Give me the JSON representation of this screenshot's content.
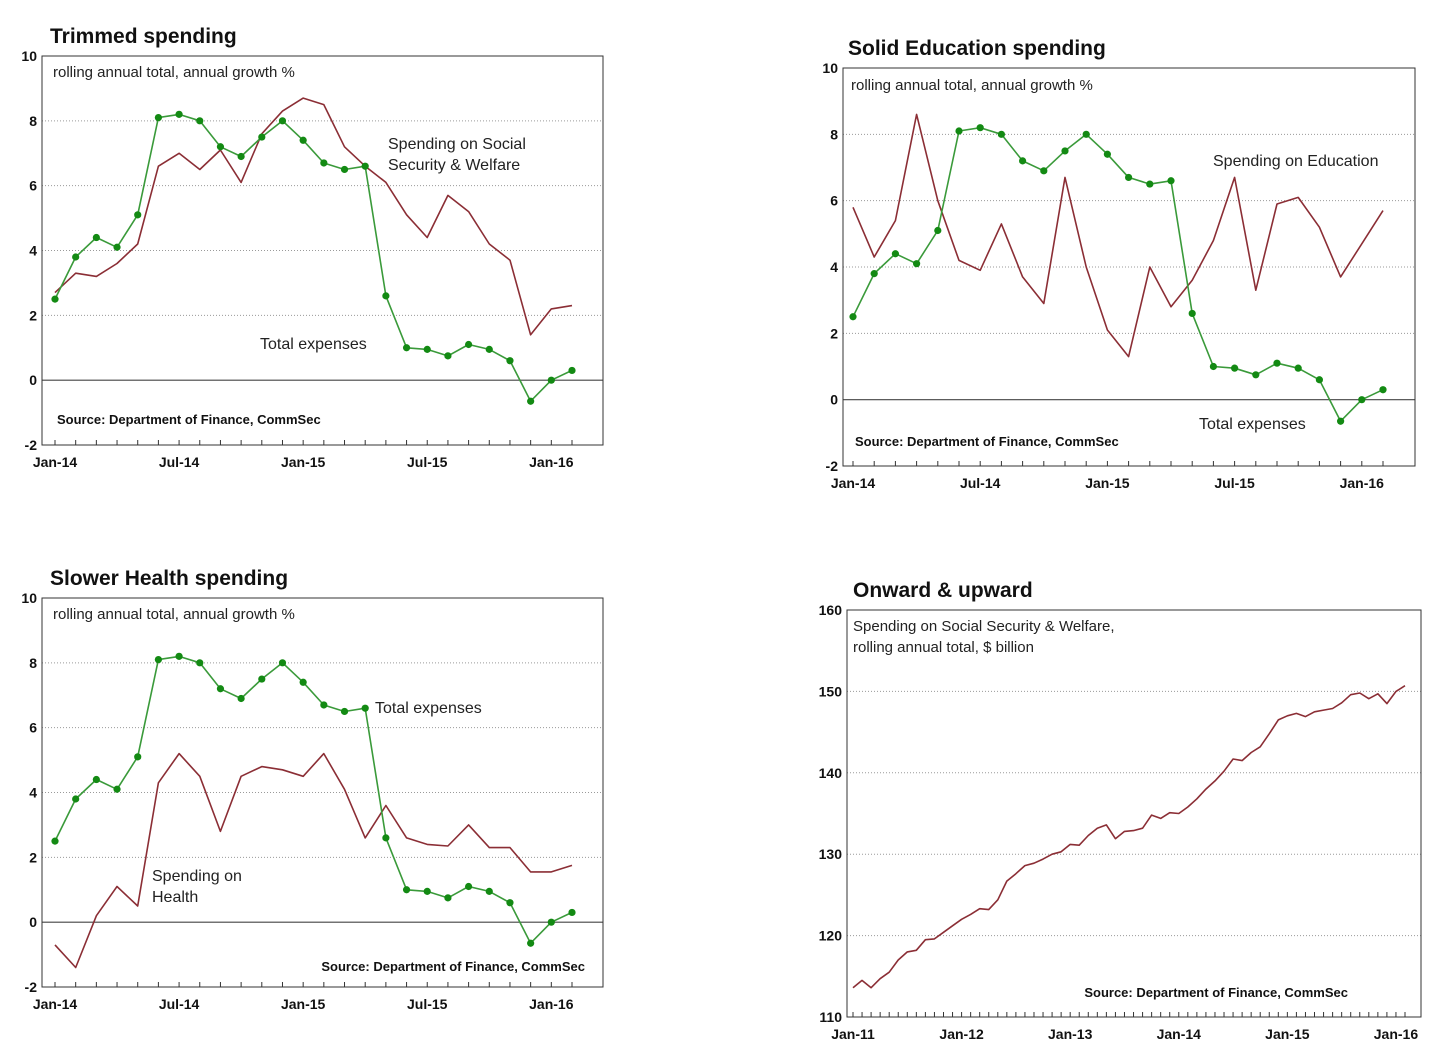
{
  "chart_data": [
    {
      "type": "line",
      "title": "Trimmed spending",
      "subtitle": "rolling annual total, annual growth %",
      "source": "Source: Department of Finance, CommSec",
      "ylim": [
        -2,
        10
      ],
      "yticks": [
        "10",
        "8",
        "6",
        "4",
        "2",
        "0",
        "-2"
      ],
      "xticks": [
        "Jan-14",
        "Jul-14",
        "Jan-15",
        "Jul-15",
        "Jan-16"
      ],
      "grid": true,
      "x": [
        "Jan-14",
        "Feb-14",
        "Mar-14",
        "Apr-14",
        "May-14",
        "Jun-14",
        "Jul-14",
        "Aug-14",
        "Sep-14",
        "Oct-14",
        "Nov-14",
        "Dec-14",
        "Jan-15",
        "Feb-15",
        "Mar-15",
        "Apr-15",
        "May-15",
        "Jun-15",
        "Jul-15",
        "Aug-15",
        "Sep-15",
        "Oct-15",
        "Nov-15",
        "Dec-15",
        "Jan-16",
        "Feb-16"
      ],
      "series": [
        {
          "name": "Spending on Social Security & Welfare",
          "label_lines": [
            "Spending on Social",
            "Security & Welfare"
          ],
          "color": "#8b2e35",
          "markers": false,
          "values": [
            2.7,
            3.3,
            3.2,
            3.6,
            4.2,
            6.6,
            7.0,
            6.5,
            7.1,
            6.1,
            7.6,
            8.3,
            8.7,
            8.5,
            7.2,
            6.6,
            6.1,
            5.1,
            4.4,
            5.7,
            5.2,
            4.2,
            3.7,
            1.4,
            2.2,
            2.3
          ]
        },
        {
          "name": "Total expenses",
          "label_lines": [
            "Total expenses"
          ],
          "color": "#3a9a3a",
          "markers": true,
          "values": [
            2.5,
            3.8,
            4.4,
            4.1,
            5.1,
            8.1,
            8.2,
            8.0,
            7.2,
            6.9,
            7.5,
            8.0,
            7.4,
            6.7,
            6.5,
            6.6,
            2.6,
            1.0,
            0.95,
            0.75,
            1.1,
            0.95,
            0.6,
            -0.65,
            0.0,
            0.3
          ]
        }
      ]
    },
    {
      "type": "line",
      "title": "Solid Education spending",
      "subtitle": "rolling annual total, annual growth %",
      "source": "Source: Department of Finance, CommSec",
      "ylim": [
        -2,
        10
      ],
      "yticks": [
        "10",
        "8",
        "6",
        "4",
        "2",
        "0",
        "-2"
      ],
      "xticks": [
        "Jan-14",
        "Jul-14",
        "Jan-15",
        "Jul-15",
        "Jan-16"
      ],
      "grid": true,
      "x": [
        "Jan-14",
        "Feb-14",
        "Mar-14",
        "Apr-14",
        "May-14",
        "Jun-14",
        "Jul-14",
        "Aug-14",
        "Sep-14",
        "Oct-14",
        "Nov-14",
        "Dec-14",
        "Jan-15",
        "Feb-15",
        "Mar-15",
        "Apr-15",
        "May-15",
        "Jun-15",
        "Jul-15",
        "Aug-15",
        "Sep-15",
        "Oct-15",
        "Nov-15",
        "Dec-15",
        "Jan-16",
        "Feb-16"
      ],
      "series": [
        {
          "name": "Spending on Education",
          "label_lines": [
            "Spending on Education"
          ],
          "color": "#8b2e35",
          "markers": false,
          "values": [
            5.8,
            4.3,
            5.4,
            8.6,
            6.0,
            4.2,
            3.9,
            5.3,
            3.7,
            2.9,
            6.7,
            4.0,
            2.1,
            1.3,
            4.0,
            2.8,
            3.6,
            4.8,
            6.7,
            3.3,
            5.9,
            6.1,
            5.2,
            3.7,
            4.7,
            5.7
          ]
        },
        {
          "name": "Total expenses",
          "label_lines": [
            "Total expenses"
          ],
          "color": "#3a9a3a",
          "markers": true,
          "values": [
            2.5,
            3.8,
            4.4,
            4.1,
            5.1,
            8.1,
            8.2,
            8.0,
            7.2,
            6.9,
            7.5,
            8.0,
            7.4,
            6.7,
            6.5,
            6.6,
            2.6,
            1.0,
            0.95,
            0.75,
            1.1,
            0.95,
            0.6,
            -0.65,
            0.0,
            0.3
          ]
        }
      ]
    },
    {
      "type": "line",
      "title": "Slower Health spending",
      "subtitle": "rolling annual total, annual growth %",
      "source": "Source: Department of Finance, CommSec",
      "ylim": [
        -2,
        10
      ],
      "yticks": [
        "10",
        "8",
        "6",
        "4",
        "2",
        "0",
        "-2"
      ],
      "xticks": [
        "Jan-14",
        "Jul-14",
        "Jan-15",
        "Jul-15",
        "Jan-16"
      ],
      "grid": true,
      "x": [
        "Jan-14",
        "Feb-14",
        "Mar-14",
        "Apr-14",
        "May-14",
        "Jun-14",
        "Jul-14",
        "Aug-14",
        "Sep-14",
        "Oct-14",
        "Nov-14",
        "Dec-14",
        "Jan-15",
        "Feb-15",
        "Mar-15",
        "Apr-15",
        "May-15",
        "Jun-15",
        "Jul-15",
        "Aug-15",
        "Sep-15",
        "Oct-15",
        "Nov-15",
        "Dec-15",
        "Jan-16",
        "Feb-16"
      ],
      "series": [
        {
          "name": "Spending on Health",
          "label_lines": [
            "Spending on",
            "Health"
          ],
          "color": "#8b2e35",
          "markers": false,
          "values": [
            -0.7,
            -1.4,
            0.2,
            1.1,
            0.5,
            4.3,
            5.2,
            4.5,
            2.8,
            4.5,
            4.8,
            4.7,
            4.5,
            5.2,
            4.1,
            2.6,
            3.6,
            2.6,
            2.4,
            2.35,
            3.0,
            2.3,
            2.3,
            1.55,
            1.55,
            1.75
          ]
        },
        {
          "name": "Total expenses",
          "label_lines": [
            "Total expenses"
          ],
          "color": "#3a9a3a",
          "markers": true,
          "values": [
            2.5,
            3.8,
            4.4,
            4.1,
            5.1,
            8.1,
            8.2,
            8.0,
            7.2,
            6.9,
            7.5,
            8.0,
            7.4,
            6.7,
            6.5,
            6.6,
            2.6,
            1.0,
            0.95,
            0.75,
            1.1,
            0.95,
            0.6,
            -0.65,
            0.0,
            0.3
          ]
        }
      ]
    },
    {
      "type": "line",
      "title": "Onward & upward",
      "subtitle_lines": [
        "Spending on Social Security & Welfare,",
        "rolling annual total, $ billion"
      ],
      "source": "Source: Department of Finance, CommSec",
      "ylim": [
        110,
        160
      ],
      "yticks": [
        "160",
        "150",
        "140",
        "130",
        "120",
        "110"
      ],
      "xticks": [
        "Jan-11",
        "Jan-12",
        "Jan-13",
        "Jan-14",
        "Jan-15",
        "Jan-16"
      ],
      "grid": true,
      "x_start": "Jan-11",
      "x_end": "Feb-16",
      "series": [
        {
          "name": "Spending on Social Security & Welfare",
          "color": "#8b2e35",
          "markers": false,
          "values": [
            113.6,
            114.5,
            113.6,
            114.7,
            115.5,
            117.0,
            118.0,
            118.2,
            119.5,
            119.6,
            120.4,
            121.2,
            122.0,
            122.6,
            123.3,
            123.2,
            124.4,
            126.7,
            127.6,
            128.6,
            128.9,
            129.4,
            130.0,
            130.3,
            131.2,
            131.1,
            132.3,
            133.2,
            133.6,
            131.9,
            132.8,
            132.9,
            133.2,
            134.8,
            134.4,
            135.1,
            135.0,
            135.8,
            136.8,
            138.0,
            139.0,
            140.2,
            141.7,
            141.5,
            142.5,
            143.2,
            144.8,
            146.5,
            147.0,
            147.3,
            146.9,
            147.5,
            147.7,
            147.9,
            148.6,
            149.6,
            149.8,
            149.1,
            149.7,
            148.5,
            150.0,
            150.7
          ]
        }
      ]
    }
  ]
}
